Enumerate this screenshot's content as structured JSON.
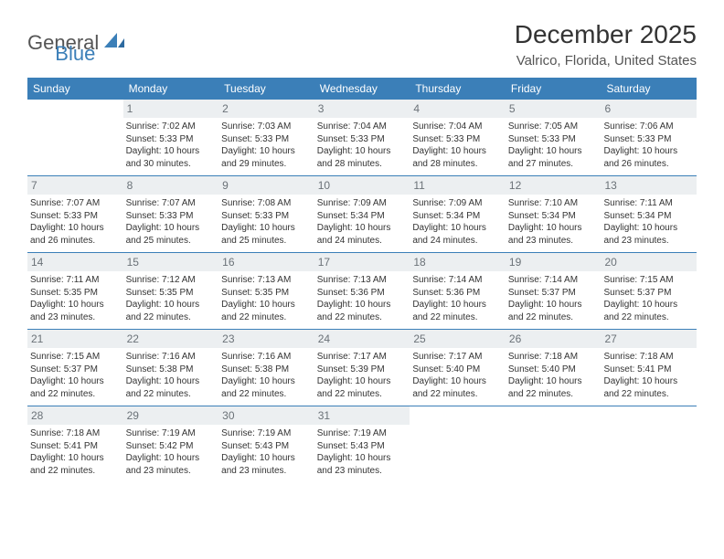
{
  "logo": {
    "text1": "General",
    "text2": "Blue"
  },
  "title": "December 2025",
  "location": "Valrico, Florida, United States",
  "colors": {
    "header_bg": "#3b7fb8",
    "header_text": "#ffffff",
    "daynum_bg": "#eceff1",
    "daynum_text": "#6b7278",
    "body_text": "#333333",
    "rule": "#3b7fb8"
  },
  "daynames": [
    "Sunday",
    "Monday",
    "Tuesday",
    "Wednesday",
    "Thursday",
    "Friday",
    "Saturday"
  ],
  "weeks": [
    [
      {
        "n": "",
        "lines": []
      },
      {
        "n": "1",
        "lines": [
          "Sunrise: 7:02 AM",
          "Sunset: 5:33 PM",
          "Daylight: 10 hours",
          "and 30 minutes."
        ]
      },
      {
        "n": "2",
        "lines": [
          "Sunrise: 7:03 AM",
          "Sunset: 5:33 PM",
          "Daylight: 10 hours",
          "and 29 minutes."
        ]
      },
      {
        "n": "3",
        "lines": [
          "Sunrise: 7:04 AM",
          "Sunset: 5:33 PM",
          "Daylight: 10 hours",
          "and 28 minutes."
        ]
      },
      {
        "n": "4",
        "lines": [
          "Sunrise: 7:04 AM",
          "Sunset: 5:33 PM",
          "Daylight: 10 hours",
          "and 28 minutes."
        ]
      },
      {
        "n": "5",
        "lines": [
          "Sunrise: 7:05 AM",
          "Sunset: 5:33 PM",
          "Daylight: 10 hours",
          "and 27 minutes."
        ]
      },
      {
        "n": "6",
        "lines": [
          "Sunrise: 7:06 AM",
          "Sunset: 5:33 PM",
          "Daylight: 10 hours",
          "and 26 minutes."
        ]
      }
    ],
    [
      {
        "n": "7",
        "lines": [
          "Sunrise: 7:07 AM",
          "Sunset: 5:33 PM",
          "Daylight: 10 hours",
          "and 26 minutes."
        ]
      },
      {
        "n": "8",
        "lines": [
          "Sunrise: 7:07 AM",
          "Sunset: 5:33 PM",
          "Daylight: 10 hours",
          "and 25 minutes."
        ]
      },
      {
        "n": "9",
        "lines": [
          "Sunrise: 7:08 AM",
          "Sunset: 5:33 PM",
          "Daylight: 10 hours",
          "and 25 minutes."
        ]
      },
      {
        "n": "10",
        "lines": [
          "Sunrise: 7:09 AM",
          "Sunset: 5:34 PM",
          "Daylight: 10 hours",
          "and 24 minutes."
        ]
      },
      {
        "n": "11",
        "lines": [
          "Sunrise: 7:09 AM",
          "Sunset: 5:34 PM",
          "Daylight: 10 hours",
          "and 24 minutes."
        ]
      },
      {
        "n": "12",
        "lines": [
          "Sunrise: 7:10 AM",
          "Sunset: 5:34 PM",
          "Daylight: 10 hours",
          "and 23 minutes."
        ]
      },
      {
        "n": "13",
        "lines": [
          "Sunrise: 7:11 AM",
          "Sunset: 5:34 PM",
          "Daylight: 10 hours",
          "and 23 minutes."
        ]
      }
    ],
    [
      {
        "n": "14",
        "lines": [
          "Sunrise: 7:11 AM",
          "Sunset: 5:35 PM",
          "Daylight: 10 hours",
          "and 23 minutes."
        ]
      },
      {
        "n": "15",
        "lines": [
          "Sunrise: 7:12 AM",
          "Sunset: 5:35 PM",
          "Daylight: 10 hours",
          "and 22 minutes."
        ]
      },
      {
        "n": "16",
        "lines": [
          "Sunrise: 7:13 AM",
          "Sunset: 5:35 PM",
          "Daylight: 10 hours",
          "and 22 minutes."
        ]
      },
      {
        "n": "17",
        "lines": [
          "Sunrise: 7:13 AM",
          "Sunset: 5:36 PM",
          "Daylight: 10 hours",
          "and 22 minutes."
        ]
      },
      {
        "n": "18",
        "lines": [
          "Sunrise: 7:14 AM",
          "Sunset: 5:36 PM",
          "Daylight: 10 hours",
          "and 22 minutes."
        ]
      },
      {
        "n": "19",
        "lines": [
          "Sunrise: 7:14 AM",
          "Sunset: 5:37 PM",
          "Daylight: 10 hours",
          "and 22 minutes."
        ]
      },
      {
        "n": "20",
        "lines": [
          "Sunrise: 7:15 AM",
          "Sunset: 5:37 PM",
          "Daylight: 10 hours",
          "and 22 minutes."
        ]
      }
    ],
    [
      {
        "n": "21",
        "lines": [
          "Sunrise: 7:15 AM",
          "Sunset: 5:37 PM",
          "Daylight: 10 hours",
          "and 22 minutes."
        ]
      },
      {
        "n": "22",
        "lines": [
          "Sunrise: 7:16 AM",
          "Sunset: 5:38 PM",
          "Daylight: 10 hours",
          "and 22 minutes."
        ]
      },
      {
        "n": "23",
        "lines": [
          "Sunrise: 7:16 AM",
          "Sunset: 5:38 PM",
          "Daylight: 10 hours",
          "and 22 minutes."
        ]
      },
      {
        "n": "24",
        "lines": [
          "Sunrise: 7:17 AM",
          "Sunset: 5:39 PM",
          "Daylight: 10 hours",
          "and 22 minutes."
        ]
      },
      {
        "n": "25",
        "lines": [
          "Sunrise: 7:17 AM",
          "Sunset: 5:40 PM",
          "Daylight: 10 hours",
          "and 22 minutes."
        ]
      },
      {
        "n": "26",
        "lines": [
          "Sunrise: 7:18 AM",
          "Sunset: 5:40 PM",
          "Daylight: 10 hours",
          "and 22 minutes."
        ]
      },
      {
        "n": "27",
        "lines": [
          "Sunrise: 7:18 AM",
          "Sunset: 5:41 PM",
          "Daylight: 10 hours",
          "and 22 minutes."
        ]
      }
    ],
    [
      {
        "n": "28",
        "lines": [
          "Sunrise: 7:18 AM",
          "Sunset: 5:41 PM",
          "Daylight: 10 hours",
          "and 22 minutes."
        ]
      },
      {
        "n": "29",
        "lines": [
          "Sunrise: 7:19 AM",
          "Sunset: 5:42 PM",
          "Daylight: 10 hours",
          "and 23 minutes."
        ]
      },
      {
        "n": "30",
        "lines": [
          "Sunrise: 7:19 AM",
          "Sunset: 5:43 PM",
          "Daylight: 10 hours",
          "and 23 minutes."
        ]
      },
      {
        "n": "31",
        "lines": [
          "Sunrise: 7:19 AM",
          "Sunset: 5:43 PM",
          "Daylight: 10 hours",
          "and 23 minutes."
        ]
      },
      {
        "n": "",
        "lines": []
      },
      {
        "n": "",
        "lines": []
      },
      {
        "n": "",
        "lines": []
      }
    ]
  ]
}
